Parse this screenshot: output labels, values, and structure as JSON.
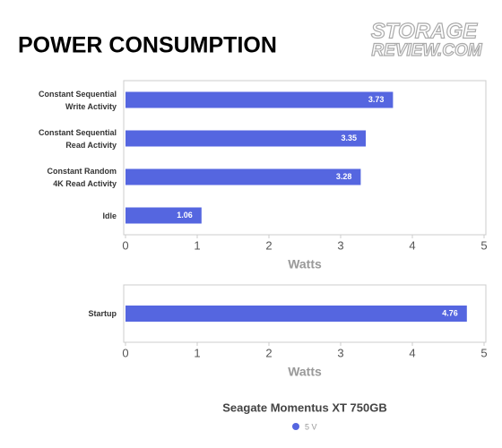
{
  "title": "POWER CONSUMPTION",
  "watermark": [
    "STORAGE",
    "REVIEW.COM"
  ],
  "legend_title": "Seagate Momentus XT 750GB",
  "chart_data": [
    {
      "type": "hbar",
      "categories": [
        "Constant Sequential\nWrite Activity",
        "Constant Sequential\nRead Activity",
        "Constant Random\n4K Read Activity",
        "Idle"
      ],
      "series": [
        {
          "name": "5 V",
          "color": "#5566e0",
          "values": [
            3.73,
            3.35,
            3.28,
            1.06
          ]
        }
      ],
      "xlabel": "Watts",
      "xlim": [
        0,
        5
      ],
      "xticks": [
        0,
        1,
        2,
        3,
        4,
        5
      ],
      "grid": false
    },
    {
      "type": "hbar",
      "categories": [
        "Startup"
      ],
      "series": [
        {
          "name": "5 V",
          "color": "#5566e0",
          "values": [
            4.76
          ]
        }
      ],
      "xlabel": "Watts",
      "xlim": [
        0,
        5
      ],
      "xticks": [
        0,
        1,
        2,
        3,
        4,
        5
      ],
      "grid": false
    }
  ]
}
